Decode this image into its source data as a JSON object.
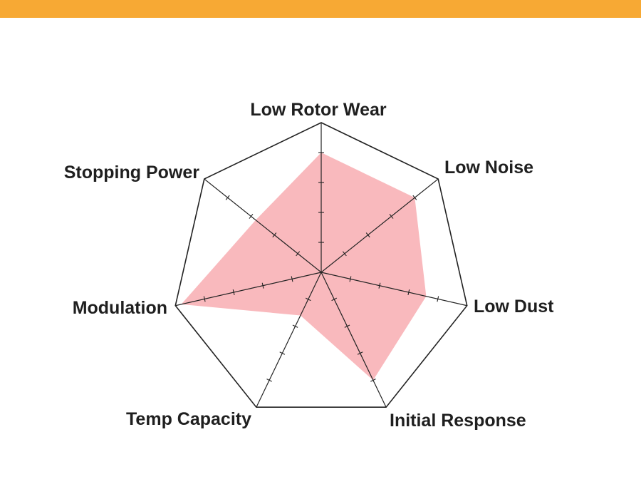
{
  "colors": {
    "top_band": "#F7A934",
    "area_fill": "#F9B9BD",
    "outline": "#222222"
  },
  "chart_data": {
    "type": "radar",
    "title": "",
    "axes": [
      "Low Rotor Wear",
      "Low Noise",
      "Low Dust",
      "Initial Response",
      "Temp Capacity",
      "Modulation",
      "Stopping Power"
    ],
    "ticks_per_axis": 4,
    "range": [
      0,
      5
    ],
    "values": [
      4,
      4,
      3.6,
      4,
      1.6,
      4.8,
      2.8
    ],
    "grid": "outer polygon only"
  }
}
